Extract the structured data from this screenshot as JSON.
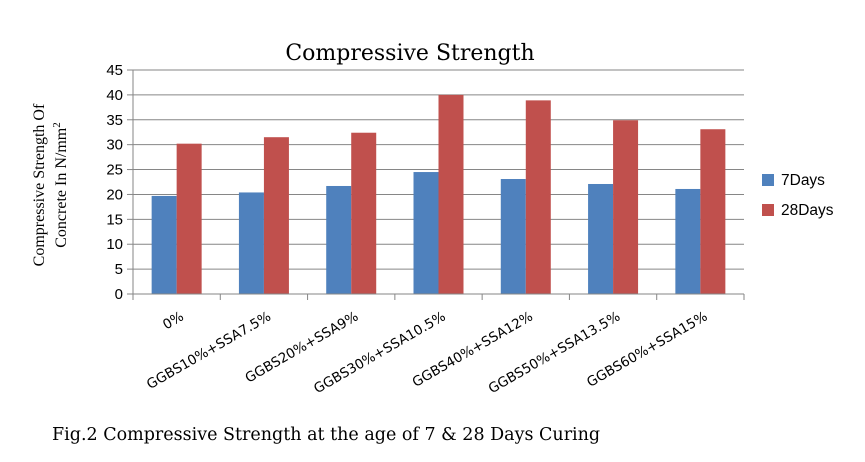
{
  "chart_data": {
    "type": "bar",
    "title": "Compressive Strength",
    "ylabel_line1": "Compressive Strength Of",
    "ylabel_line2": "Concrete In N/mm",
    "ylabel_superscript": "2",
    "xlabel": "",
    "ylim": [
      0,
      45
    ],
    "ytick_step": 5,
    "grid": true,
    "legend_position": "right",
    "categories": [
      "0%",
      "GGBS10%+SSA7.5%",
      "GGBS20%+SSA9%",
      "GGBS30%+SSA10.5%",
      "GGBS40%+SSA12%",
      "GGBS50%+SSA13.5%",
      "GGBS60%+SSA15%"
    ],
    "series": [
      {
        "name": "7Days",
        "color": "#4F81BD",
        "values": [
          19.7,
          20.4,
          21.7,
          24.5,
          23.1,
          22.1,
          21.1
        ]
      },
      {
        "name": "28Days",
        "color": "#C0504D",
        "values": [
          30.2,
          31.5,
          32.4,
          40.0,
          38.9,
          34.9,
          33.1
        ]
      }
    ]
  },
  "caption": "Fig.2 Compressive Strength at the age of 7 & 28 Days Curing"
}
